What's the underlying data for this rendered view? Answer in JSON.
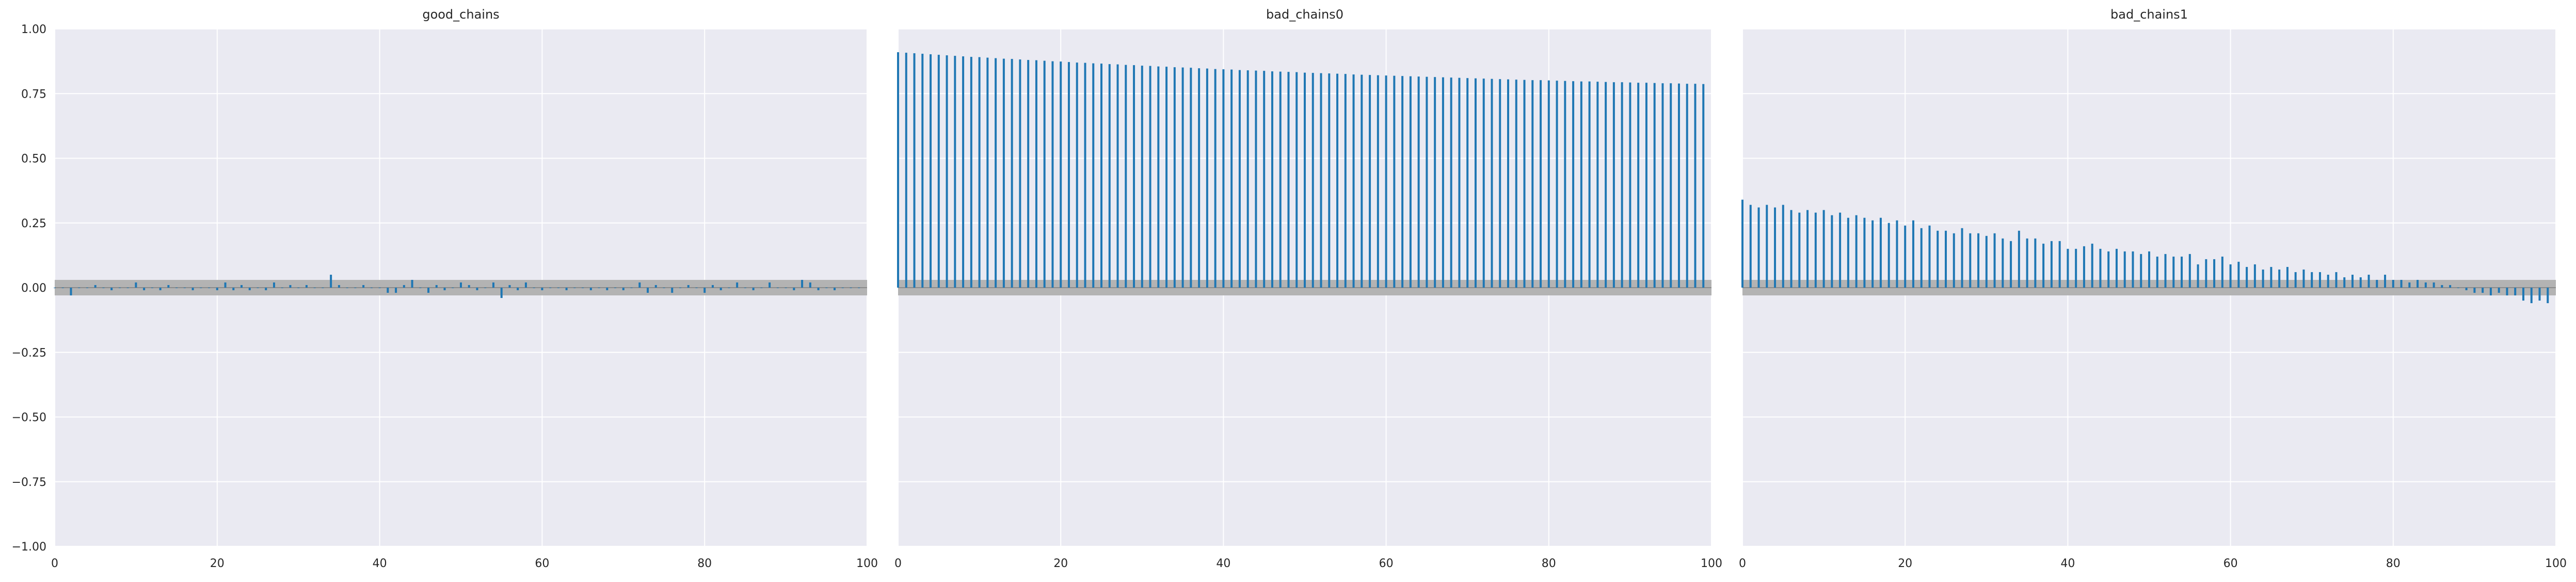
{
  "chart_data": [
    {
      "type": "bar",
      "subtype": "autocorrelation",
      "title": "good_chains",
      "xlabel": "",
      "ylabel": "",
      "xlim": [
        0,
        100
      ],
      "ylim": [
        -1,
        1
      ],
      "xticks": [
        "0",
        "20",
        "40",
        "60",
        "80",
        "100"
      ],
      "yticks": [
        "1.00",
        "0.75",
        "0.50",
        "0.25",
        "0.00",
        "−0.25",
        "−0.50",
        "−0.75",
        "−1.00"
      ],
      "grid": true,
      "confidence_band": [
        -0.03,
        0.03
      ],
      "series": [
        {
          "values": [
            0.0,
            0.0,
            -0.03,
            0.0,
            0.0,
            0.01,
            0.0,
            -0.01,
            0.0,
            0.0,
            0.02,
            -0.01,
            0.0,
            -0.01,
            0.01,
            0.0,
            0.0,
            -0.01,
            0.0,
            0.0,
            -0.01,
            0.02,
            -0.01,
            0.01,
            -0.01,
            0.0,
            -0.01,
            0.02,
            0.0,
            0.01,
            0.0,
            0.01,
            0.0,
            0.0,
            0.05,
            0.01,
            0.0,
            0.0,
            0.01,
            0.0,
            0.0,
            -0.02,
            -0.02,
            0.01,
            0.03,
            0.0,
            -0.02,
            0.01,
            -0.01,
            0.0,
            0.02,
            0.01,
            -0.01,
            0.0,
            0.02,
            -0.04,
            0.01,
            -0.01,
            0.02,
            0.0,
            -0.01,
            0.0,
            0.0,
            -0.01,
            0.0,
            0.0,
            -0.01,
            0.0,
            -0.01,
            0.0,
            -0.01,
            0.0,
            0.02,
            -0.02,
            0.01,
            0.0,
            -0.02,
            0.0,
            0.01,
            0.0,
            -0.02,
            0.01,
            -0.01,
            0.0,
            0.02,
            0.0,
            -0.01,
            0.0,
            0.02,
            0.0,
            0.0,
            -0.01,
            0.03,
            0.02,
            -0.01,
            0.0,
            -0.01,
            0.0,
            0.0,
            0.0
          ]
        }
      ]
    },
    {
      "type": "bar",
      "subtype": "autocorrelation",
      "title": "bad_chains0",
      "xlabel": "",
      "ylabel": "",
      "xlim": [
        0,
        100
      ],
      "ylim": [
        -1,
        1
      ],
      "xticks": [
        "0",
        "20",
        "40",
        "60",
        "80",
        "100"
      ],
      "yticks": [],
      "grid": true,
      "confidence_band": [
        -0.03,
        0.03
      ],
      "series": [
        {
          "values": [
            0.91,
            0.908,
            0.906,
            0.904,
            0.902,
            0.9,
            0.898,
            0.896,
            0.894,
            0.892,
            0.891,
            0.889,
            0.887,
            0.885,
            0.884,
            0.882,
            0.88,
            0.879,
            0.877,
            0.875,
            0.874,
            0.872,
            0.87,
            0.869,
            0.867,
            0.866,
            0.864,
            0.863,
            0.861,
            0.86,
            0.858,
            0.857,
            0.855,
            0.854,
            0.852,
            0.851,
            0.85,
            0.848,
            0.847,
            0.845,
            0.844,
            0.843,
            0.841,
            0.84,
            0.839,
            0.838,
            0.836,
            0.835,
            0.834,
            0.833,
            0.831,
            0.83,
            0.829,
            0.828,
            0.827,
            0.826,
            0.824,
            0.823,
            0.822,
            0.821,
            0.82,
            0.819,
            0.818,
            0.817,
            0.816,
            0.815,
            0.814,
            0.813,
            0.812,
            0.811,
            0.81,
            0.809,
            0.808,
            0.807,
            0.806,
            0.805,
            0.804,
            0.803,
            0.802,
            0.802,
            0.801,
            0.8,
            0.799,
            0.798,
            0.797,
            0.797,
            0.796,
            0.795,
            0.794,
            0.794,
            0.793,
            0.792,
            0.792,
            0.791,
            0.79,
            0.79,
            0.789,
            0.788,
            0.788,
            0.787
          ]
        }
      ]
    },
    {
      "type": "bar",
      "subtype": "autocorrelation",
      "title": "bad_chains1",
      "xlabel": "",
      "ylabel": "",
      "xlim": [
        0,
        100
      ],
      "ylim": [
        -1,
        1
      ],
      "xticks": [
        "0",
        "20",
        "40",
        "60",
        "80",
        "100"
      ],
      "yticks": [],
      "grid": true,
      "confidence_band": [
        -0.03,
        0.03
      ],
      "series": [
        {
          "values": [
            0.34,
            0.32,
            0.31,
            0.32,
            0.31,
            0.32,
            0.3,
            0.29,
            0.3,
            0.29,
            0.3,
            0.28,
            0.29,
            0.27,
            0.28,
            0.27,
            0.26,
            0.27,
            0.25,
            0.26,
            0.24,
            0.26,
            0.23,
            0.24,
            0.22,
            0.22,
            0.21,
            0.23,
            0.21,
            0.21,
            0.2,
            0.21,
            0.19,
            0.18,
            0.22,
            0.19,
            0.19,
            0.17,
            0.18,
            0.18,
            0.15,
            0.15,
            0.16,
            0.17,
            0.15,
            0.14,
            0.15,
            0.14,
            0.14,
            0.13,
            0.14,
            0.12,
            0.13,
            0.12,
            0.12,
            0.13,
            0.09,
            0.11,
            0.11,
            0.12,
            0.09,
            0.1,
            0.08,
            0.09,
            0.07,
            0.08,
            0.07,
            0.08,
            0.06,
            0.07,
            0.06,
            0.06,
            0.05,
            0.06,
            0.04,
            0.05,
            0.04,
            0.05,
            0.03,
            0.05,
            0.03,
            0.03,
            0.02,
            0.03,
            0.02,
            0.02,
            0.01,
            0.01,
            0.0,
            -0.01,
            -0.02,
            -0.02,
            -0.03,
            -0.02,
            -0.03,
            -0.03,
            -0.05,
            -0.06,
            -0.05,
            -0.06
          ]
        }
      ]
    }
  ],
  "colors": {
    "stem": "#1f77b4",
    "band": "#b3b3b3",
    "axes_background": "#eaeaf2",
    "grid": "#ffffff",
    "zero_line": "#8c8c8c",
    "text": "#262626"
  }
}
